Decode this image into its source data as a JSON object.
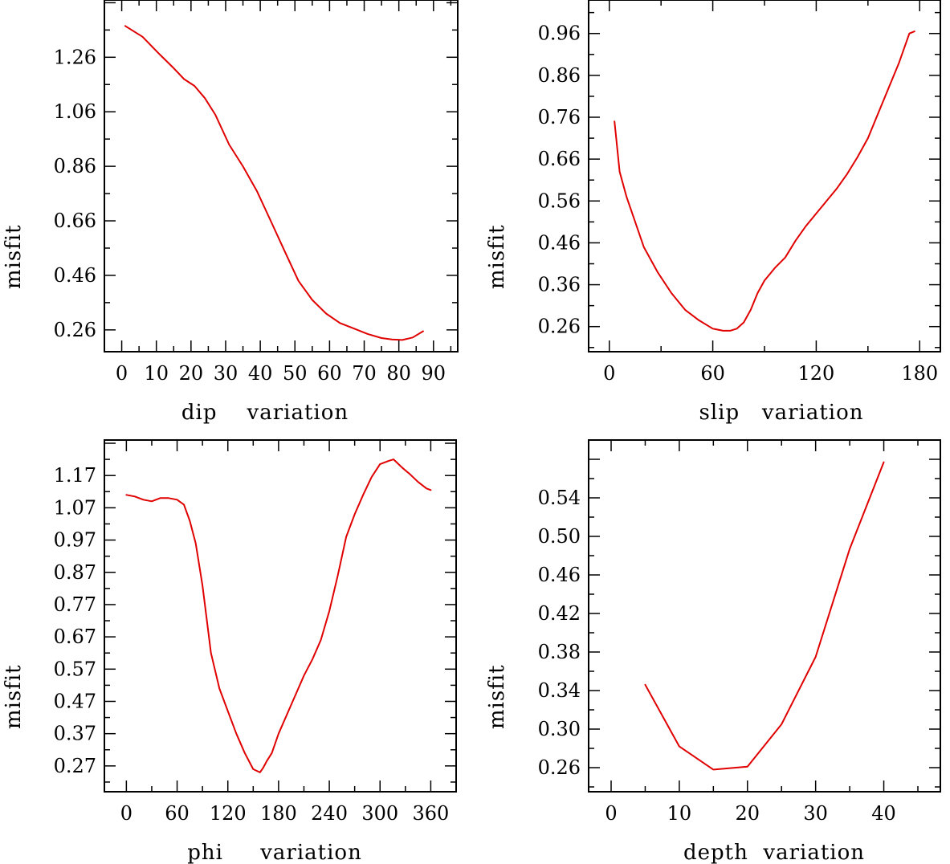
{
  "chart_data": [
    {
      "type": "line",
      "panel": "top-left",
      "xlabel": "dip    variation",
      "ylabel": "misfit",
      "xlim": [
        -5,
        97
      ],
      "ylim": [
        0.18,
        1.47
      ],
      "xticks": [
        0,
        10,
        20,
        30,
        40,
        50,
        60,
        70,
        80,
        90
      ],
      "xtick_labels": [
        "0",
        "10",
        "20",
        "30",
        "40",
        "50",
        "60",
        "70",
        "80",
        "90"
      ],
      "yticks": [
        0.26,
        0.46,
        0.66,
        0.86,
        1.06,
        1.26
      ],
      "ytick_labels": [
        "0.26",
        "0.46",
        "0.66",
        "0.86",
        "1.06",
        "1.26"
      ],
      "line_color": "#e00000",
      "series": [
        {
          "name": "misfit",
          "x": [
            1,
            6,
            11,
            15,
            18,
            21,
            24,
            27,
            31,
            35,
            39,
            43,
            47,
            51,
            55,
            59,
            63,
            67,
            71,
            75,
            78,
            81,
            84,
            87
          ],
          "y": [
            1.375,
            1.335,
            1.27,
            1.22,
            1.18,
            1.155,
            1.11,
            1.05,
            0.94,
            0.86,
            0.77,
            0.66,
            0.55,
            0.44,
            0.37,
            0.32,
            0.285,
            0.265,
            0.245,
            0.23,
            0.225,
            0.223,
            0.232,
            0.255
          ]
        }
      ]
    },
    {
      "type": "line",
      "panel": "top-right",
      "xlabel": "slip   variation",
      "ylabel": "misfit",
      "xlim": [
        -12,
        192
      ],
      "ylim": [
        0.2,
        1.04
      ],
      "xticks": [
        0,
        60,
        120,
        180
      ],
      "xtick_labels": [
        "0",
        "60",
        "120",
        "180"
      ],
      "yticks": [
        0.26,
        0.36,
        0.46,
        0.56,
        0.66,
        0.76,
        0.86,
        0.96
      ],
      "ytick_labels": [
        "0.26",
        "0.36",
        "0.46",
        "0.56",
        "0.66",
        "0.76",
        "0.86",
        "0.96"
      ],
      "line_color": "#e00000",
      "series": [
        {
          "name": "misfit",
          "x": [
            3,
            6,
            10,
            15,
            20,
            28,
            36,
            44,
            52,
            60,
            66,
            70,
            74,
            78,
            82,
            86,
            90,
            96,
            102,
            108,
            114,
            120,
            126,
            132,
            138,
            144,
            150,
            156,
            162,
            168,
            174,
            177
          ],
          "y": [
            0.75,
            0.63,
            0.57,
            0.51,
            0.45,
            0.39,
            0.34,
            0.3,
            0.275,
            0.255,
            0.25,
            0.25,
            0.255,
            0.27,
            0.3,
            0.34,
            0.37,
            0.4,
            0.425,
            0.465,
            0.5,
            0.53,
            0.56,
            0.59,
            0.625,
            0.665,
            0.71,
            0.77,
            0.83,
            0.89,
            0.96,
            0.965
          ]
        }
      ]
    },
    {
      "type": "line",
      "panel": "bottom-left",
      "xlabel": "phi     variation",
      "ylabel": "misfit",
      "xlim": [
        -26,
        390
      ],
      "ylim": [
        0.19,
        1.28
      ],
      "xticks": [
        0,
        60,
        120,
        180,
        240,
        300,
        360
      ],
      "xtick_labels": [
        "0",
        "60",
        "120",
        "180",
        "240",
        "300",
        "360"
      ],
      "yticks": [
        0.27,
        0.37,
        0.47,
        0.57,
        0.67,
        0.77,
        0.87,
        0.97,
        1.07,
        1.17
      ],
      "ytick_labels": [
        "0.27",
        "0.37",
        "0.47",
        "0.57",
        "0.67",
        "0.77",
        "0.87",
        "0.97",
        "1.07",
        "1.17"
      ],
      "line_color": "#e00000",
      "series": [
        {
          "name": "misfit",
          "x": [
            0,
            10,
            20,
            30,
            40,
            50,
            60,
            68,
            75,
            82,
            90,
            100,
            110,
            120,
            130,
            140,
            150,
            158,
            162,
            166,
            172,
            180,
            190,
            200,
            210,
            220,
            230,
            240,
            250,
            260,
            270,
            280,
            290,
            300,
            310,
            316,
            320,
            326,
            335,
            345,
            355,
            360
          ],
          "y": [
            1.11,
            1.105,
            1.095,
            1.09,
            1.1,
            1.1,
            1.095,
            1.08,
            1.03,
            0.96,
            0.83,
            0.62,
            0.51,
            0.44,
            0.37,
            0.31,
            0.26,
            0.25,
            0.265,
            0.285,
            0.31,
            0.37,
            0.43,
            0.49,
            0.55,
            0.6,
            0.66,
            0.75,
            0.86,
            0.98,
            1.05,
            1.11,
            1.165,
            1.205,
            1.215,
            1.22,
            1.21,
            1.195,
            1.175,
            1.15,
            1.13,
            1.125
          ]
        }
      ]
    },
    {
      "type": "line",
      "panel": "bottom-right",
      "xlabel": "depth  variation",
      "ylabel": "misfit",
      "xlim": [
        -3.3,
        48.3
      ],
      "ylim": [
        0.235,
        0.6
      ],
      "xticks": [
        0,
        10,
        20,
        30,
        40
      ],
      "xtick_labels": [
        "0",
        "10",
        "20",
        "30",
        "40"
      ],
      "yticks": [
        0.26,
        0.3,
        0.34,
        0.38,
        0.42,
        0.46,
        0.5,
        0.54
      ],
      "ytick_labels": [
        "0.26",
        "0.30",
        "0.34",
        "0.38",
        "0.42",
        "0.46",
        "0.50",
        "0.54"
      ],
      "line_color": "#e00000",
      "series": [
        {
          "name": "misfit",
          "x": [
            5,
            10,
            15,
            20,
            25,
            30,
            35,
            40
          ],
          "y": [
            0.346,
            0.282,
            0.258,
            0.261,
            0.305,
            0.375,
            0.487,
            0.577
          ]
        }
      ]
    }
  ]
}
